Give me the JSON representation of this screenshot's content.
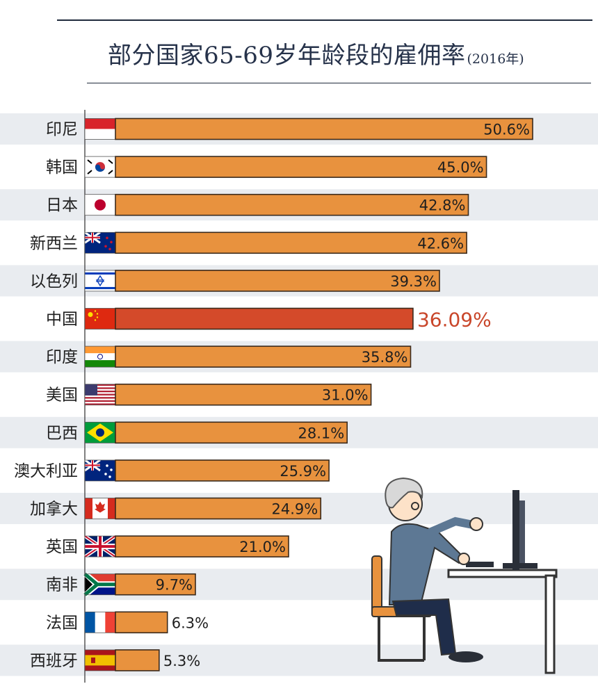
{
  "chart_data": {
    "type": "bar",
    "orientation": "horizontal",
    "title": "部分国家65-69岁年龄段的雇佣率",
    "subtitle": "(2016年)",
    "categories": [
      "印尼",
      "韩国",
      "日本",
      "新西兰",
      "以色列",
      "中国",
      "印度",
      "美国",
      "巴西",
      "澳大利亚",
      "加拿大",
      "英国",
      "南非",
      "法国",
      "西班牙"
    ],
    "values": [
      50.6,
      45.0,
      42.8,
      42.6,
      39.3,
      36.09,
      35.8,
      31.0,
      28.1,
      25.9,
      24.9,
      21.0,
      9.7,
      6.3,
      5.3
    ],
    "value_labels": [
      "50.6%",
      "45.0%",
      "42.8%",
      "42.6%",
      "39.3%",
      "36.09%",
      "35.8%",
      "31.0%",
      "28.1%",
      "25.9%",
      "24.9%",
      "21.0%",
      "9.7%",
      "6.3%",
      "5.3%"
    ],
    "flags": [
      "flag-indonesia-icon",
      "flag-south-korea-icon",
      "flag-japan-icon",
      "flag-new-zealand-icon",
      "flag-israel-icon",
      "flag-china-icon",
      "flag-india-icon",
      "flag-usa-icon",
      "flag-brazil-icon",
      "flag-australia-icon",
      "flag-canada-icon",
      "flag-uk-icon",
      "flag-south-africa-icon",
      "flag-france-icon",
      "flag-spain-icon"
    ],
    "highlight_category": "中国",
    "xlim": [
      0,
      55
    ],
    "grid": false,
    "colors": {
      "bar": "#e8923e",
      "highlight": "#d44a2a",
      "bar_stroke": "#3a2a1c",
      "stripe": "#e9ecf0",
      "text": "#1f1f1f",
      "highlight_text": "#c9472b"
    }
  }
}
